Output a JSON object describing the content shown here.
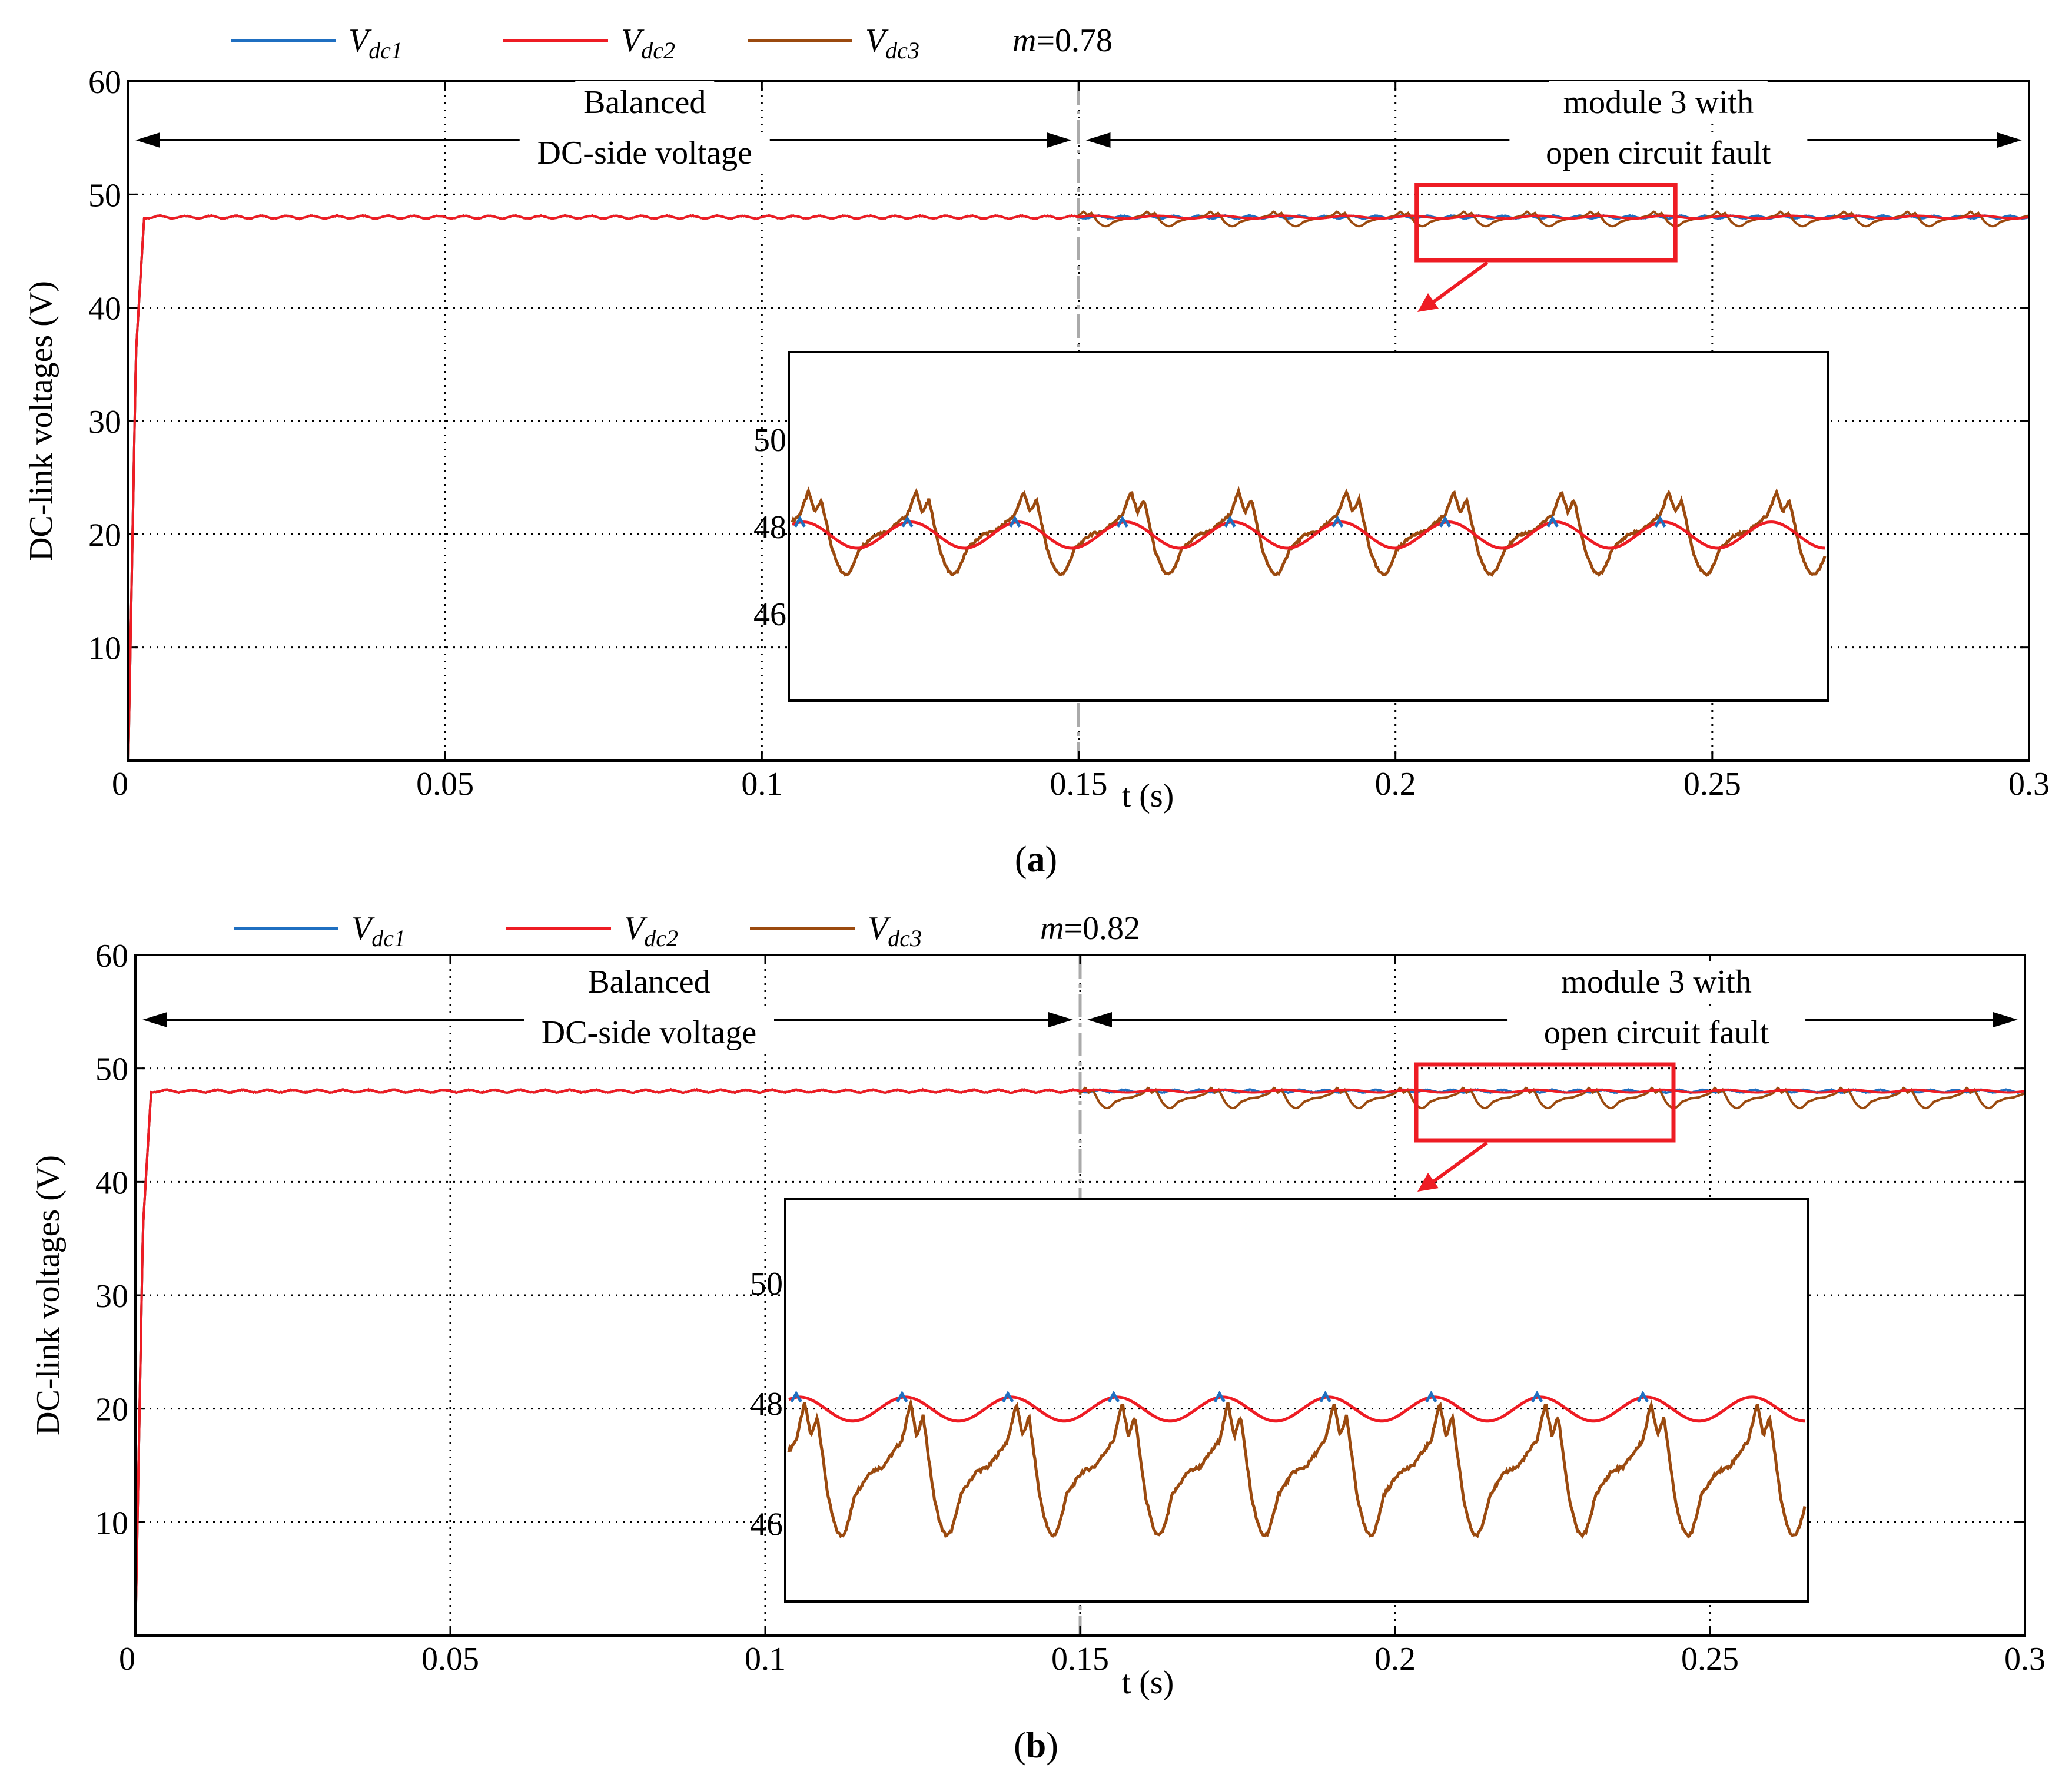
{
  "chart_data": [
    {
      "panel": "(a)",
      "panel_letter": "a",
      "type": "line",
      "title": "",
      "modulation_label": "m",
      "modulation_value": "=0.78",
      "xlabel": "t (s)",
      "ylabel": "DC-link voltages (V)",
      "xlim": [
        0,
        0.3
      ],
      "ylim": [
        0,
        60
      ],
      "x_ticks": [
        0,
        0.05,
        0.1,
        0.15,
        0.2,
        0.25,
        0.3
      ],
      "x_tick_labels": [
        "0",
        "0.05",
        "0.1",
        "0.15",
        "0.2",
        "0.25",
        "0.3"
      ],
      "y_ticks": [
        10,
        20,
        30,
        40,
        50,
        60
      ],
      "y_tick_labels": [
        "10",
        "20",
        "30",
        "40",
        "50",
        "60"
      ],
      "grid": "dotted",
      "legend": [
        {
          "var": "V",
          "sub": "dc1",
          "color": "#1f6fc1"
        },
        {
          "var": "V",
          "sub": "dc2",
          "color": "#ee1c24"
        },
        {
          "var": "V",
          "sub": "dc3",
          "color": "#9b4a0f"
        }
      ],
      "fault_time": 0.15,
      "steady_value": 48,
      "dc3_ripple_after_fault": [
        47.2,
        48.5
      ],
      "ripple_period": 0.01,
      "annotations": {
        "balanced_line1": "Balanced",
        "balanced_line2": "DC-side voltage",
        "fault_line1": "module 3 with",
        "fault_line2": "open circuit fault"
      },
      "zoom_window": {
        "x_range": [
          0.2,
          0.24
        ],
        "y_range": [
          46.8,
          48.7
        ]
      },
      "inset": {
        "y_ticks": [
          46,
          48,
          50
        ],
        "y_tick_labels": [
          "46",
          "48",
          "50"
        ],
        "ylim": [
          44,
          52
        ],
        "dc2_range": [
          47.5,
          48.1
        ],
        "dc3_range": [
          46.9,
          48.8
        ],
        "cycles": 9.6
      }
    },
    {
      "panel": "(b)",
      "panel_letter": "b",
      "type": "line",
      "title": "",
      "modulation_label": "m",
      "modulation_value": "=0.82",
      "xlabel": "t (s)",
      "ylabel": "DC-link voltages (V)",
      "xlim": [
        0,
        0.3
      ],
      "ylim": [
        0,
        60
      ],
      "x_ticks": [
        0,
        0.05,
        0.1,
        0.15,
        0.2,
        0.25,
        0.3
      ],
      "x_tick_labels": [
        "0",
        "0.05",
        "0.1",
        "0.15",
        "0.2",
        "0.25",
        "0.3"
      ],
      "y_ticks": [
        10,
        20,
        30,
        40,
        50,
        60
      ],
      "y_tick_labels": [
        "10",
        "20",
        "30",
        "40",
        "50",
        "60"
      ],
      "grid": "dotted",
      "legend": [
        {
          "var": "V",
          "sub": "dc1",
          "color": "#1f6fc1"
        },
        {
          "var": "V",
          "sub": "dc2",
          "color": "#ee1c24"
        },
        {
          "var": "V",
          "sub": "dc3",
          "color": "#9b4a0f"
        }
      ],
      "fault_time": 0.15,
      "steady_value": 48,
      "dc3_ripple_after_fault": [
        46.5,
        48.3
      ],
      "ripple_period": 0.01,
      "annotations": {
        "balanced_line1": "Balanced",
        "balanced_line2": "DC-side voltage",
        "fault_line1": "module 3 with",
        "fault_line2": "open circuit fault"
      },
      "zoom_window": {
        "x_range": [
          0.2,
          0.24
        ],
        "y_range": [
          45.5,
          50.5
        ]
      },
      "inset": {
        "y_ticks": [
          46,
          48,
          50
        ],
        "y_tick_labels": [
          "46",
          "48",
          "50"
        ],
        "ylim": [
          44.7,
          51.4
        ],
        "dc2_range": [
          47.7,
          48.1
        ],
        "dc3_range": [
          45.8,
          48.0
        ],
        "cycles": 9.6
      }
    }
  ]
}
